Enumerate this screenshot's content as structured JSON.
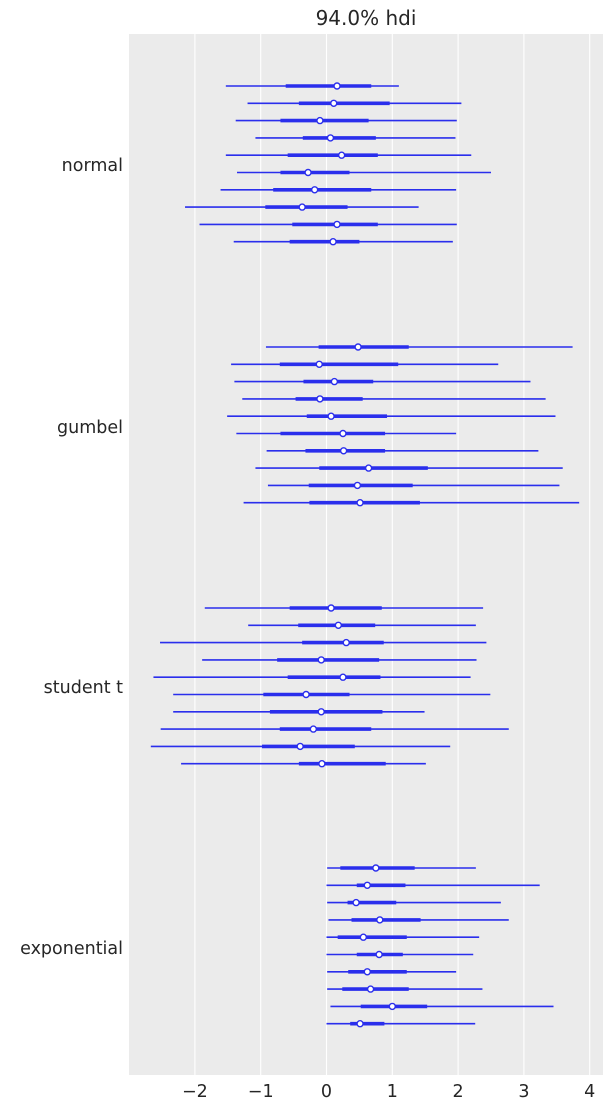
{
  "chart_data": {
    "type": "forest",
    "title": "94.0% hdi",
    "xlim": [
      -2.9,
      4.15
    ],
    "x_ticks": [
      {
        "value": -2,
        "label": "−2"
      },
      {
        "value": -1,
        "label": "−1"
      },
      {
        "value": 0,
        "label": "0"
      },
      {
        "value": 1,
        "label": "1"
      },
      {
        "value": 2,
        "label": "2"
      },
      {
        "value": 3,
        "label": "3"
      },
      {
        "value": 4,
        "label": "4"
      }
    ],
    "grid": "vertical",
    "background": "#ebebeb",
    "color": "#2a2eec",
    "groups": [
      {
        "name": "normal",
        "intervals": [
          {
            "hdi": [
              -1.53,
              1.1
            ],
            "iqr": [
              -0.62,
              0.68
            ],
            "median": 0.16
          },
          {
            "hdi": [
              -1.2,
              2.05
            ],
            "iqr": [
              -0.42,
              0.96
            ],
            "median": 0.11
          },
          {
            "hdi": [
              -1.38,
              1.98
            ],
            "iqr": [
              -0.7,
              0.64
            ],
            "median": -0.1
          },
          {
            "hdi": [
              -1.08,
              1.96
            ],
            "iqr": [
              -0.36,
              0.75
            ],
            "median": 0.06
          },
          {
            "hdi": [
              -1.53,
              2.2
            ],
            "iqr": [
              -0.59,
              0.78
            ],
            "median": 0.23
          },
          {
            "hdi": [
              -1.36,
              2.5
            ],
            "iqr": [
              -0.7,
              0.35
            ],
            "median": -0.28
          },
          {
            "hdi": [
              -1.61,
              1.97
            ],
            "iqr": [
              -0.81,
              0.68
            ],
            "median": -0.18
          },
          {
            "hdi": [
              -2.15,
              1.4
            ],
            "iqr": [
              -0.93,
              0.32
            ],
            "median": -0.37
          },
          {
            "hdi": [
              -1.93,
              1.98
            ],
            "iqr": [
              -0.52,
              0.78
            ],
            "median": 0.16
          },
          {
            "hdi": [
              -1.41,
              1.92
            ],
            "iqr": [
              -0.56,
              0.5
            ],
            "median": 0.1
          }
        ]
      },
      {
        "name": "gumbel",
        "intervals": [
          {
            "hdi": [
              -0.92,
              3.74
            ],
            "iqr": [
              -0.12,
              1.25
            ],
            "median": 0.48
          },
          {
            "hdi": [
              -1.45,
              2.61
            ],
            "iqr": [
              -0.71,
              1.09
            ],
            "median": -0.11
          },
          {
            "hdi": [
              -1.4,
              3.1
            ],
            "iqr": [
              -0.35,
              0.71
            ],
            "median": 0.12
          },
          {
            "hdi": [
              -1.28,
              3.33
            ],
            "iqr": [
              -0.47,
              0.55
            ],
            "median": -0.1
          },
          {
            "hdi": [
              -1.51,
              3.48
            ],
            "iqr": [
              -0.3,
              0.92
            ],
            "median": 0.07
          },
          {
            "hdi": [
              -1.37,
              1.97
            ],
            "iqr": [
              -0.7,
              0.89
            ],
            "median": 0.25
          },
          {
            "hdi": [
              -0.91,
              3.22
            ],
            "iqr": [
              -0.32,
              0.89
            ],
            "median": 0.26
          },
          {
            "hdi": [
              -1.08,
              3.59
            ],
            "iqr": [
              -0.11,
              1.54
            ],
            "median": 0.64
          },
          {
            "hdi": [
              -0.89,
              3.54
            ],
            "iqr": [
              -0.27,
              1.31
            ],
            "median": 0.47
          },
          {
            "hdi": [
              -1.26,
              3.84
            ],
            "iqr": [
              -0.26,
              1.42
            ],
            "median": 0.51
          }
        ]
      },
      {
        "name": "student t",
        "intervals": [
          {
            "hdi": [
              -1.85,
              2.38
            ],
            "iqr": [
              -0.56,
              0.84
            ],
            "median": 0.07
          },
          {
            "hdi": [
              -1.19,
              2.27
            ],
            "iqr": [
              -0.43,
              0.74
            ],
            "median": 0.18
          },
          {
            "hdi": [
              -2.53,
              2.43
            ],
            "iqr": [
              -0.37,
              0.87
            ],
            "median": 0.3
          },
          {
            "hdi": [
              -1.89,
              2.28
            ],
            "iqr": [
              -0.75,
              0.8
            ],
            "median": -0.08
          },
          {
            "hdi": [
              -2.63,
              2.19
            ],
            "iqr": [
              -0.59,
              0.82
            ],
            "median": 0.25
          },
          {
            "hdi": [
              -2.33,
              2.49
            ],
            "iqr": [
              -0.96,
              0.35
            ],
            "median": -0.31
          },
          {
            "hdi": [
              -2.33,
              1.49
            ],
            "iqr": [
              -0.86,
              0.85
            ],
            "median": -0.08
          },
          {
            "hdi": [
              -2.52,
              2.77
            ],
            "iqr": [
              -0.71,
              0.68
            ],
            "median": -0.2
          },
          {
            "hdi": [
              -2.67,
              1.88
            ],
            "iqr": [
              -0.98,
              0.43
            ],
            "median": -0.4
          },
          {
            "hdi": [
              -2.21,
              1.51
            ],
            "iqr": [
              -0.42,
              0.9
            ],
            "median": -0.07
          }
        ]
      },
      {
        "name": "exponential",
        "intervals": [
          {
            "hdi": [
              0.01,
              2.27
            ],
            "iqr": [
              0.21,
              1.34
            ],
            "median": 0.75
          },
          {
            "hdi": [
              0.0,
              3.24
            ],
            "iqr": [
              0.46,
              1.2
            ],
            "median": 0.62
          },
          {
            "hdi": [
              0.01,
              2.65
            ],
            "iqr": [
              0.32,
              1.06
            ],
            "median": 0.45
          },
          {
            "hdi": [
              0.03,
              2.77
            ],
            "iqr": [
              0.38,
              1.43
            ],
            "median": 0.81
          },
          {
            "hdi": [
              0.0,
              2.32
            ],
            "iqr": [
              0.17,
              1.22
            ],
            "median": 0.56
          },
          {
            "hdi": [
              0.0,
              2.23
            ],
            "iqr": [
              0.46,
              1.16
            ],
            "median": 0.8
          },
          {
            "hdi": [
              0.01,
              1.97
            ],
            "iqr": [
              0.33,
              1.22
            ],
            "median": 0.62
          },
          {
            "hdi": [
              0.01,
              2.37
            ],
            "iqr": [
              0.24,
              1.25
            ],
            "median": 0.67
          },
          {
            "hdi": [
              0.06,
              3.45
            ],
            "iqr": [
              0.52,
              1.53
            ],
            "median": 1.0
          },
          {
            "hdi": [
              0.0,
              2.26
            ],
            "iqr": [
              0.36,
              0.88
            ],
            "median": 0.51
          }
        ]
      }
    ]
  }
}
